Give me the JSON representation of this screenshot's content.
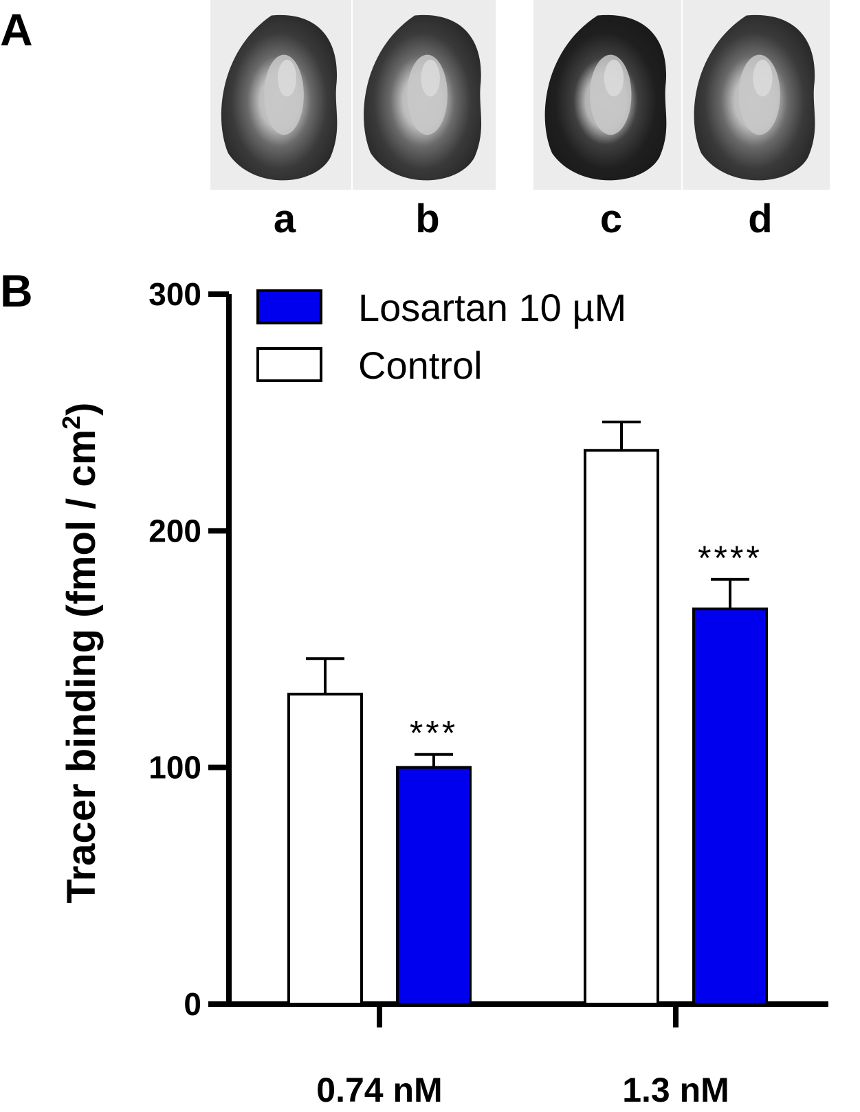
{
  "panels": {
    "a_letter": "A",
    "b_letter": "B"
  },
  "images": [
    {
      "label": "a"
    },
    {
      "label": "b"
    },
    {
      "label": "c"
    },
    {
      "label": "d"
    }
  ],
  "colors": {
    "losartan": "#0000ee",
    "control": "#ffffff",
    "stroke": "#000000"
  },
  "chart_data": {
    "type": "bar",
    "title": "",
    "xlabel": "",
    "ylabel": "Tracer binding (fmol / cm",
    "ylabel_sup": "2",
    "ylabel_close": ")",
    "ylim": [
      0,
      300
    ],
    "yticks": [
      0,
      100,
      200,
      300
    ],
    "categories": [
      "0.74 nM",
      "1.3 nM"
    ],
    "series": [
      {
        "name": "Control",
        "values": [
          131,
          234
        ],
        "errors": [
          15,
          12
        ]
      },
      {
        "name": "Losartan 10 µM",
        "values": [
          100,
          167
        ],
        "errors": [
          5.5,
          12.5
        ]
      }
    ],
    "annotations": [
      "***",
      "****"
    ],
    "legend_placement": "top-left",
    "grid": false
  }
}
